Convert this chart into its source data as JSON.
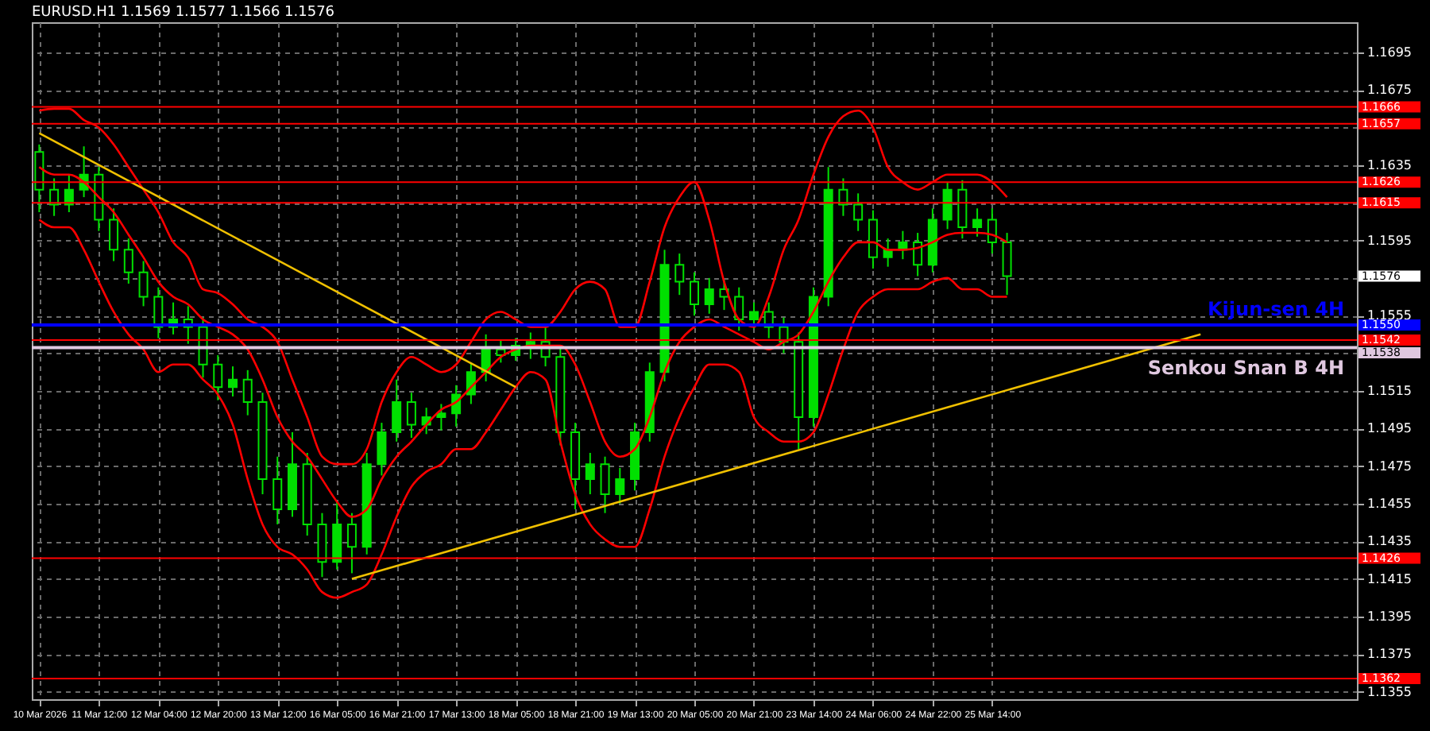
{
  "chart_data": {
    "type": "candlestick",
    "title": "EURUSD.H1 1.1569 1.1577 1.1566 1.1576",
    "color": "#00e000",
    "categories": [
      "10 Mar 2026",
      null,
      null,
      null,
      "11 Mar 12:00",
      null,
      null,
      null,
      "12 Mar 04:00",
      null,
      null,
      null,
      "12 Mar 20:00",
      null,
      null,
      null,
      "13 Mar 12:00",
      null,
      null,
      null,
      "16 Mar 05:00",
      null,
      null,
      null,
      "16 Mar 21:00",
      null,
      null,
      null,
      "17 Mar 13:00",
      null,
      null,
      null,
      "18 Mar 05:00",
      null,
      null,
      null,
      "18 Mar 21:00",
      null,
      null,
      null,
      "19 Mar 13:00",
      null,
      null,
      null,
      "20 Mar 05:00",
      null,
      null,
      null,
      "20 Mar 21:00",
      null,
      null,
      null,
      "23 Mar 14:00",
      null,
      null,
      null,
      "24 Mar 06:00",
      null,
      null,
      null,
      "24 Mar 22:00",
      null,
      null,
      null,
      "25 Mar 14:00",
      null,
      null,
      null,
      null,
      null,
      null,
      null,
      null,
      null,
      null,
      null,
      null,
      null,
      null,
      null,
      null,
      null,
      null,
      null,
      null,
      null,
      null,
      null,
      null
    ],
    "ohlc": [
      [
        1.1642,
        1.1646,
        1.161,
        1.1622
      ],
      [
        1.1622,
        1.1628,
        1.1608,
        1.1614
      ],
      [
        1.1614,
        1.163,
        1.161,
        1.1622
      ],
      [
        1.1622,
        1.1645,
        1.1618,
        1.163
      ],
      [
        1.163,
        1.1634,
        1.16,
        1.1606
      ],
      [
        1.1606,
        1.1612,
        1.1584,
        1.159
      ],
      [
        1.159,
        1.1596,
        1.1572,
        1.1578
      ],
      [
        1.1578,
        1.1584,
        1.156,
        1.1565
      ],
      [
        1.1565,
        1.157,
        1.1543,
        1.1549
      ],
      [
        1.1549,
        1.1562,
        1.1545,
        1.1553
      ],
      [
        1.1553,
        1.156,
        1.154,
        1.1549
      ],
      [
        1.1549,
        1.1554,
        1.1522,
        1.1529
      ],
      [
        1.1529,
        1.1534,
        1.151,
        1.1517
      ],
      [
        1.1517,
        1.1528,
        1.1512,
        1.1521
      ],
      [
        1.1521,
        1.1526,
        1.1502,
        1.1509
      ],
      [
        1.1509,
        1.1514,
        1.146,
        1.1468
      ],
      [
        1.1468,
        1.148,
        1.1444,
        1.1452
      ],
      [
        1.1452,
        1.1493,
        1.1448,
        1.1476
      ],
      [
        1.1476,
        1.1482,
        1.1438,
        1.1444
      ],
      [
        1.1444,
        1.145,
        1.1416,
        1.1424
      ],
      [
        1.1424,
        1.1456,
        1.142,
        1.1444
      ],
      [
        1.1444,
        1.145,
        1.1418,
        1.1432
      ],
      [
        1.1432,
        1.1482,
        1.1428,
        1.1476
      ],
      [
        1.1476,
        1.1498,
        1.147,
        1.1493
      ],
      [
        1.1493,
        1.1521,
        1.1488,
        1.1509
      ],
      [
        1.1509,
        1.1514,
        1.149,
        1.1497
      ],
      [
        1.1497,
        1.1506,
        1.1492,
        1.1501
      ],
      [
        1.1501,
        1.1508,
        1.1494,
        1.1503
      ],
      [
        1.1503,
        1.1518,
        1.1496,
        1.1513
      ],
      [
        1.1513,
        1.153,
        1.1508,
        1.1525
      ],
      [
        1.1525,
        1.1545,
        1.152,
        1.1537
      ],
      [
        1.1537,
        1.1542,
        1.153,
        1.1534
      ],
      [
        1.1534,
        1.1543,
        1.1531,
        1.1539
      ],
      [
        1.1539,
        1.1546,
        1.1532,
        1.1541
      ],
      [
        1.1541,
        1.1549,
        1.1528,
        1.1533
      ],
      [
        1.1533,
        1.1538,
        1.1486,
        1.1493
      ],
      [
        1.1493,
        1.1498,
        1.1452,
        1.1468
      ],
      [
        1.1468,
        1.1482,
        1.146,
        1.1476
      ],
      [
        1.1476,
        1.148,
        1.145,
        1.146
      ],
      [
        1.146,
        1.1474,
        1.1455,
        1.1468
      ],
      [
        1.1468,
        1.1498,
        1.1462,
        1.1493
      ],
      [
        1.1493,
        1.153,
        1.1488,
        1.1525
      ],
      [
        1.1525,
        1.159,
        1.152,
        1.1582
      ],
      [
        1.1582,
        1.1588,
        1.1566,
        1.1573
      ],
      [
        1.1573,
        1.1578,
        1.1555,
        1.1561
      ],
      [
        1.1561,
        1.1575,
        1.1556,
        1.1569
      ],
      [
        1.1569,
        1.1574,
        1.1558,
        1.1565
      ],
      [
        1.1565,
        1.157,
        1.1547,
        1.1553
      ],
      [
        1.1553,
        1.1562,
        1.1548,
        1.1557
      ],
      [
        1.1557,
        1.1562,
        1.1543,
        1.1549
      ],
      [
        1.1549,
        1.1554,
        1.1535,
        1.1541
      ],
      [
        1.1541,
        1.1546,
        1.1484,
        1.1501
      ],
      [
        1.1501,
        1.157,
        1.1496,
        1.1565
      ],
      [
        1.1565,
        1.1634,
        1.156,
        1.1622
      ],
      [
        1.1622,
        1.1628,
        1.1608,
        1.1614
      ],
      [
        1.1614,
        1.162,
        1.16,
        1.1606
      ],
      [
        1.1606,
        1.1611,
        1.158,
        1.1586
      ],
      [
        1.1586,
        1.1596,
        1.1581,
        1.159
      ],
      [
        1.159,
        1.16,
        1.1585,
        1.1594
      ],
      [
        1.1594,
        1.1599,
        1.1576,
        1.1582
      ],
      [
        1.1582,
        1.1612,
        1.1578,
        1.1606
      ],
      [
        1.1606,
        1.1626,
        1.1601,
        1.1622
      ],
      [
        1.1622,
        1.1627,
        1.1596,
        1.1602
      ],
      [
        1.1602,
        1.1612,
        1.1597,
        1.1606
      ],
      [
        1.1606,
        1.1612,
        1.1588,
        1.1594
      ],
      [
        1.1594,
        1.1599,
        1.1566,
        1.1576
      ],
      null,
      null,
      null,
      null,
      null,
      null,
      null,
      null,
      null,
      null,
      null,
      null,
      null,
      null,
      null,
      null,
      null,
      null,
      null,
      null,
      null,
      null,
      null
    ],
    "series": [
      {
        "type": "line",
        "color": "#ff0000",
        "values": [
          1.1664,
          1.1665,
          1.1665,
          1.1659,
          1.1655,
          1.1646,
          1.1634,
          1.1622,
          1.161,
          1.1594,
          1.1586,
          1.1569,
          1.1567,
          1.1561,
          1.1553,
          1.1549,
          1.1541,
          1.1521,
          1.1501,
          1.148,
          1.1476,
          1.1476,
          1.1484,
          1.1509,
          1.1525,
          1.1533,
          1.1529,
          1.1525,
          1.1529,
          1.1541,
          1.1553,
          1.1557,
          1.1553,
          1.1549,
          1.1549,
          1.1557,
          1.1569,
          1.1573,
          1.1569,
          1.1549,
          1.1549,
          1.1573,
          1.1602,
          1.1618,
          1.1626,
          1.1606,
          1.1573,
          1.1553,
          1.1549,
          1.1565,
          1.159,
          1.1606,
          1.163,
          1.165,
          1.1661,
          1.1664,
          1.1655,
          1.1634,
          1.1626,
          1.1622,
          1.1626,
          1.163,
          1.163,
          1.163,
          1.1626,
          1.1618,
          null,
          null,
          null,
          null,
          null,
          null,
          null,
          null,
          null,
          null,
          null,
          null,
          null,
          null,
          null,
          null,
          null,
          null,
          null,
          null,
          null,
          null,
          null
        ]
      },
      {
        "type": "line",
        "color": "#ff0000",
        "values": [
          1.1634,
          1.163,
          1.163,
          1.1626,
          1.1618,
          1.161,
          1.1598,
          1.1586,
          1.1573,
          1.1565,
          1.1561,
          1.1553,
          1.1549,
          1.1545,
          1.1537,
          1.1521,
          1.1501,
          1.1488,
          1.148,
          1.1468,
          1.1456,
          1.1448,
          1.1452,
          1.1468,
          1.148,
          1.1488,
          1.1497,
          1.1505,
          1.1509,
          1.1517,
          1.1525,
          1.1533,
          1.1537,
          1.1539,
          1.1539,
          1.1539,
          1.1529,
          1.1509,
          1.1488,
          1.148,
          1.1484,
          1.1501,
          1.1525,
          1.1541,
          1.1549,
          1.1553,
          1.1549,
          1.1545,
          1.1541,
          1.1537,
          1.1541,
          1.1545,
          1.1557,
          1.1573,
          1.1586,
          1.1594,
          1.1594,
          1.159,
          1.159,
          1.1591,
          1.1594,
          1.1598,
          1.1599,
          1.1599,
          1.1598,
          1.1594,
          null,
          null,
          null,
          null,
          null,
          null,
          null,
          null,
          null,
          null,
          null,
          null,
          null,
          null,
          null,
          null,
          null,
          null,
          null,
          null,
          null,
          null,
          null
        ]
      },
      {
        "type": "line",
        "color": "#ff0000",
        "values": [
          1.1606,
          1.1602,
          1.1602,
          1.159,
          1.1573,
          1.1557,
          1.1545,
          1.1537,
          1.1525,
          1.1529,
          1.1529,
          1.1521,
          1.1513,
          1.1497,
          1.1468,
          1.1444,
          1.1432,
          1.1428,
          1.142,
          1.1408,
          1.1405,
          1.1408,
          1.1412,
          1.1428,
          1.1448,
          1.1464,
          1.1472,
          1.1476,
          1.1484,
          1.1484,
          1.1493,
          1.1505,
          1.1517,
          1.1525,
          1.1521,
          1.1488,
          1.146,
          1.1444,
          1.1436,
          1.1432,
          1.1432,
          1.1452,
          1.148,
          1.1501,
          1.1517,
          1.1529,
          1.1529,
          1.1525,
          1.1501,
          1.1493,
          1.1488,
          1.1488,
          1.1493,
          1.1513,
          1.1537,
          1.1557,
          1.1565,
          1.1569,
          1.1569,
          1.1569,
          1.1573,
          1.1575,
          1.1569,
          1.1569,
          1.1565,
          1.1565,
          null,
          null,
          null,
          null,
          null,
          null,
          null,
          null,
          null,
          null,
          null,
          null,
          null,
          null,
          null,
          null,
          null,
          null,
          null,
          null,
          null,
          null,
          null
        ]
      },
      {
        "type": "line",
        "color": "#f0c000",
        "values": [
          1.1652,
          null,
          null,
          null,
          null,
          null,
          null,
          null,
          null,
          null,
          null,
          null,
          null,
          null,
          null,
          null,
          null,
          null,
          null,
          null,
          null,
          null,
          null,
          null,
          null,
          null,
          null,
          null,
          null,
          null,
          null,
          null,
          1.1517,
          null,
          null,
          null,
          null,
          null,
          null,
          null,
          null,
          null,
          null,
          null,
          null,
          null,
          null,
          null,
          null,
          null,
          null,
          null,
          null,
          null,
          null,
          null,
          null,
          null,
          null,
          null,
          null,
          null,
          null,
          null,
          null,
          null,
          null,
          null,
          null,
          null,
          null,
          null,
          null,
          null,
          null,
          null,
          null,
          null,
          null,
          null,
          null,
          null,
          null,
          null,
          null,
          null,
          null,
          null,
          null
        ]
      },
      {
        "type": "line",
        "color": "#f0c000",
        "values": [
          null,
          null,
          null,
          null,
          null,
          null,
          null,
          null,
          null,
          null,
          null,
          null,
          null,
          null,
          null,
          null,
          null,
          null,
          null,
          null,
          null,
          1.1415,
          null,
          null,
          null,
          null,
          null,
          null,
          null,
          null,
          null,
          null,
          null,
          null,
          null,
          null,
          null,
          null,
          null,
          null,
          null,
          null,
          null,
          null,
          null,
          null,
          null,
          null,
          null,
          null,
          null,
          null,
          null,
          null,
          null,
          null,
          null,
          null,
          null,
          null,
          null,
          null,
          null,
          null,
          null,
          null,
          null,
          null,
          null,
          null,
          null,
          null,
          null,
          null,
          null,
          null,
          null,
          null,
          1.1545,
          null,
          null,
          null,
          null,
          null,
          null,
          null,
          null,
          null,
          null
        ]
      }
    ],
    "ylim": [
      1.1351,
      1.1711
    ],
    "yticks": [
      1.1355,
      1.1375,
      1.1395,
      1.1415,
      1.1435,
      1.1455,
      1.1475,
      1.1495,
      1.1515,
      {
        "value": 1.1535,
        "label": null
      },
      1.1555,
      {
        "value": 1.1575,
        "label": null
      },
      1.1595,
      {
        "value": 1.1615,
        "label": null
      },
      1.1635,
      {
        "value": 1.1655,
        "label": null
      },
      1.1675,
      1.1695
    ],
    "grid": true,
    "ref_lines": [
      {
        "axis": "y",
        "value": 1.1666,
        "label": "1.1666",
        "color": "#ff0000"
      },
      {
        "axis": "y",
        "value": 1.1657,
        "label": "1.1657",
        "color": "#ff0000"
      },
      {
        "axis": "y",
        "value": 1.1626,
        "label": "1.1626",
        "color": "#ff0000"
      },
      {
        "axis": "y",
        "value": 1.1615,
        "label": "1.1615",
        "color": "#ff0000"
      },
      {
        "axis": "y",
        "value": 1.155,
        "label": "1.1550",
        "color": "#0000ff"
      },
      {
        "axis": "y",
        "value": 1.1542,
        "label": "1.1542",
        "color": "#ff0000"
      },
      {
        "axis": "y",
        "value": 1.1538,
        "label": "1.1538",
        "color": "#e0c8e0"
      },
      {
        "axis": "y",
        "value": 1.1426,
        "label": "1.1426",
        "color": "#ff0000"
      },
      {
        "axis": "y",
        "value": 1.1362,
        "label": "1.1362",
        "color": "#ff0000"
      }
    ],
    "annotations": [
      "1.1576",
      {
        "text": "Kijun-sen 4H",
        "y": 1.155
      },
      {
        "text": "Senkou Snan B 4H",
        "y": 1.1538
      }
    ]
  }
}
